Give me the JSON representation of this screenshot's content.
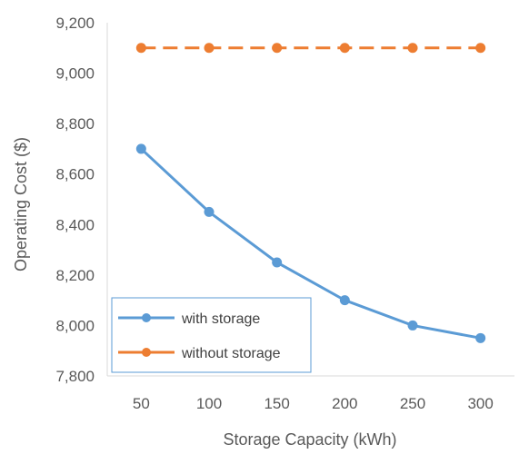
{
  "chart_data": {
    "type": "line",
    "title": "",
    "xlabel": "Storage Capacity (kWh)",
    "ylabel": "Operating Cost ($)",
    "x": [
      50,
      100,
      150,
      200,
      250,
      300
    ],
    "x_tick_labels": [
      "50",
      "100",
      "150",
      "200",
      "250",
      "300"
    ],
    "ylim": [
      7800,
      9200
    ],
    "y_ticks": [
      7800,
      8000,
      8200,
      8400,
      8600,
      8800,
      9000,
      9200
    ],
    "y_tick_labels": [
      "7,800",
      "8,000",
      "8,200",
      "8,400",
      "8,600",
      "8,800",
      "9,000",
      "9,200"
    ],
    "grid": false,
    "legend_position": "bottom-left",
    "series": [
      {
        "name": "with storage",
        "color": "#5B9BD5",
        "line_style": "solid",
        "marker": "circle",
        "values": [
          8700,
          8450,
          8250,
          8100,
          8000,
          7950
        ]
      },
      {
        "name": "without storage",
        "color": "#ED7D31",
        "line_style": "dashed",
        "marker": "circle",
        "values": [
          9100,
          9100,
          9100,
          9100,
          9100,
          9100
        ]
      }
    ]
  }
}
